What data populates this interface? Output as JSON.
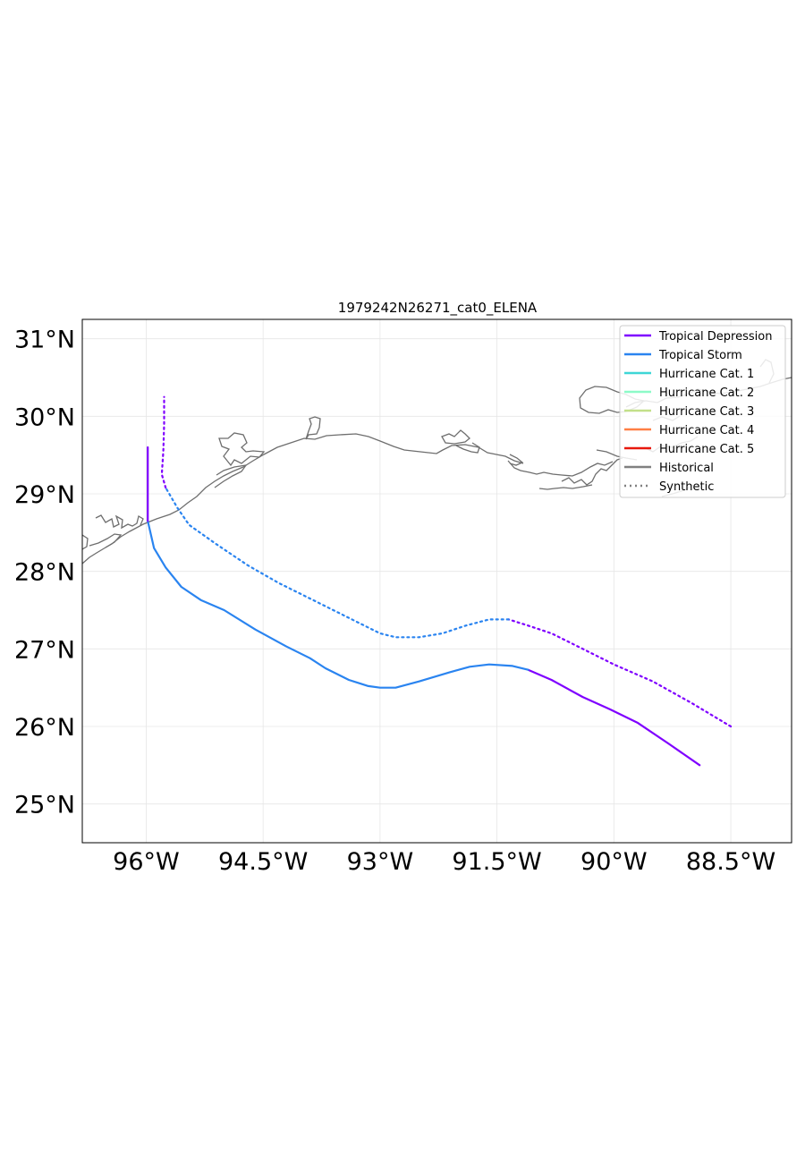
{
  "title": "1979242N26271_cat0_ELENA",
  "axes": {
    "lon_ticks": [
      {
        "value": -96.0,
        "label": "96°W"
      },
      {
        "value": -94.5,
        "label": "94.5°W"
      },
      {
        "value": -93.0,
        "label": "93°W"
      },
      {
        "value": -91.5,
        "label": "91.5°W"
      },
      {
        "value": -90.0,
        "label": "90°W"
      },
      {
        "value": -88.5,
        "label": "88.5°W"
      }
    ],
    "lat_ticks": [
      {
        "value": 31,
        "label": "31°N"
      },
      {
        "value": 30,
        "label": "30°N"
      },
      {
        "value": 29,
        "label": "29°N"
      },
      {
        "value": 28,
        "label": "28°N"
      },
      {
        "value": 27,
        "label": "27°N"
      },
      {
        "value": 26,
        "label": "26°N"
      },
      {
        "value": 25,
        "label": "25°N"
      }
    ],
    "lon_range": [
      -96.82,
      -87.72
    ],
    "lat_range": [
      24.5,
      31.25
    ],
    "grid": true
  },
  "legend": {
    "position": "top-right",
    "entries": [
      {
        "label": "Tropical Depression",
        "color": "#7f00ff",
        "style": "solid"
      },
      {
        "label": "Tropical Storm",
        "color": "#2a84f0",
        "style": "solid"
      },
      {
        "label": "Hurricane Cat. 1",
        "color": "#3ed6d6",
        "style": "solid"
      },
      {
        "label": "Hurricane Cat. 2",
        "color": "#8dfac8",
        "style": "solid"
      },
      {
        "label": "Hurricane Cat. 3",
        "color": "#c2e089",
        "style": "solid"
      },
      {
        "label": "Hurricane Cat. 4",
        "color": "#ff7f45",
        "style": "solid"
      },
      {
        "label": "Hurricane Cat. 5",
        "color": "#e8180c",
        "style": "solid"
      },
      {
        "label": "Historical",
        "color": "#808080",
        "style": "solid"
      },
      {
        "label": "Synthetic",
        "color": "#808080",
        "style": "dotted"
      }
    ]
  },
  "chart_data": {
    "type": "line",
    "title": "1979242N26271_cat0_ELENA",
    "xlabel": "",
    "ylabel": "",
    "xlim": [
      -96.82,
      -87.72
    ],
    "ylim": [
      24.5,
      31.25
    ],
    "series": [
      {
        "name": "Historical",
        "style": "solid",
        "segments": [
          {
            "category": "Tropical Depression",
            "points": [
              [
                -88.9,
                25.5
              ],
              [
                -89.3,
                25.78
              ],
              [
                -89.7,
                26.05
              ],
              [
                -90.05,
                26.22
              ],
              [
                -90.4,
                26.38
              ],
              [
                -90.8,
                26.6
              ],
              [
                -91.1,
                26.73
              ]
            ]
          },
          {
            "category": "Tropical Storm",
            "points": [
              [
                -91.1,
                26.73
              ],
              [
                -91.3,
                26.78
              ],
              [
                -91.6,
                26.8
              ],
              [
                -91.85,
                26.77
              ],
              [
                -92.1,
                26.7
              ],
              [
                -92.5,
                26.58
              ],
              [
                -92.8,
                26.5
              ],
              [
                -93.0,
                26.5
              ],
              [
                -93.15,
                26.52
              ],
              [
                -93.4,
                26.6
              ],
              [
                -93.7,
                26.75
              ],
              [
                -93.9,
                26.88
              ],
              [
                -94.2,
                27.03
              ],
              [
                -94.6,
                27.25
              ],
              [
                -95.0,
                27.5
              ],
              [
                -95.3,
                27.63
              ],
              [
                -95.55,
                27.8
              ],
              [
                -95.75,
                28.05
              ],
              [
                -95.9,
                28.3
              ],
              [
                -95.98,
                28.65
              ]
            ]
          },
          {
            "category": "Tropical Depression",
            "points": [
              [
                -95.98,
                28.65
              ],
              [
                -95.98,
                29.0
              ],
              [
                -95.98,
                29.3
              ],
              [
                -95.98,
                29.6
              ]
            ]
          }
        ]
      },
      {
        "name": "Synthetic",
        "style": "dotted",
        "segments": [
          {
            "category": "Tropical Depression",
            "points": [
              [
                -88.5,
                26.0
              ],
              [
                -89.0,
                26.3
              ],
              [
                -89.5,
                26.58
              ],
              [
                -90.0,
                26.8
              ],
              [
                -90.4,
                27.0
              ],
              [
                -90.8,
                27.2
              ],
              [
                -91.1,
                27.3
              ],
              [
                -91.35,
                27.38
              ]
            ]
          },
          {
            "category": "Tropical Storm",
            "points": [
              [
                -91.35,
                27.38
              ],
              [
                -91.6,
                27.38
              ],
              [
                -91.9,
                27.3
              ],
              [
                -92.2,
                27.2
              ],
              [
                -92.5,
                27.15
              ],
              [
                -92.8,
                27.15
              ],
              [
                -93.0,
                27.2
              ],
              [
                -93.3,
                27.35
              ],
              [
                -93.6,
                27.5
              ],
              [
                -93.9,
                27.65
              ],
              [
                -94.3,
                27.85
              ],
              [
                -94.7,
                28.08
              ],
              [
                -95.1,
                28.35
              ],
              [
                -95.45,
                28.6
              ],
              [
                -95.6,
                28.82
              ],
              [
                -95.75,
                29.08
              ]
            ]
          },
          {
            "category": "Tropical Depression",
            "points": [
              [
                -95.75,
                29.08
              ],
              [
                -95.8,
                29.25
              ],
              [
                -95.78,
                29.55
              ],
              [
                -95.77,
                29.9
              ],
              [
                -95.77,
                30.25
              ]
            ]
          }
        ]
      }
    ]
  }
}
